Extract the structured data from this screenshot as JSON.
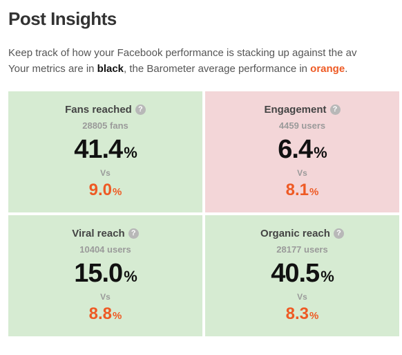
{
  "colors": {
    "text": "#555555",
    "heading": "#333333",
    "black_accent": "#111111",
    "orange_accent": "#ee5a24",
    "muted": "#9a9a9a",
    "card_green": "#d6ebd2",
    "card_red": "#f3d6d8",
    "help_bg": "#b8b8b8"
  },
  "page_title": "Post Insights",
  "intro": {
    "line1_a": "Keep track of how your Facebook performance is stacking up against the av",
    "line2_a": "Your metrics are in ",
    "black": "black",
    "line2_b": ", the Barometer average performance in ",
    "orange": "orange",
    "line2_c": "."
  },
  "vs_label": "Vs",
  "pct": "%",
  "help_glyph": "?",
  "cards": [
    {
      "title": "Fans reached",
      "count": "28805",
      "unit": "fans",
      "value": "41.4",
      "benchmark": "9.0",
      "status": "green"
    },
    {
      "title": "Engagement",
      "count": "4459",
      "unit": "users",
      "value": "6.4",
      "benchmark": "8.1",
      "status": "red"
    },
    {
      "title": "Viral reach",
      "count": "10404",
      "unit": "users",
      "value": "15.0",
      "benchmark": "8.8",
      "status": "green"
    },
    {
      "title": "Organic reach",
      "count": "28177",
      "unit": "users",
      "value": "40.5",
      "benchmark": "8.3",
      "status": "green"
    }
  ]
}
